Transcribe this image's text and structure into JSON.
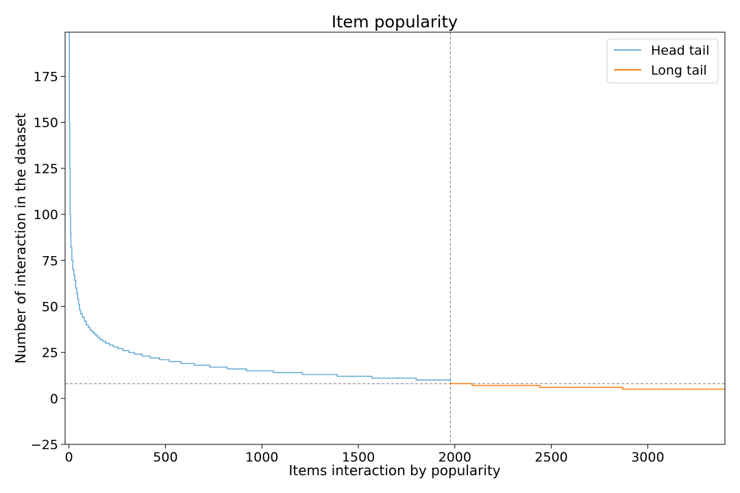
{
  "chart_data": {
    "type": "line",
    "title": "Item popularity",
    "xlabel": "Items interaction by popularity",
    "ylabel": "Number of interaction in the dataset",
    "xlim": [
      -20,
      3400
    ],
    "ylim": [
      -25,
      199
    ],
    "xticks": [
      0,
      500,
      1000,
      1500,
      2000,
      2500,
      3000
    ],
    "yticks": [
      -25,
      0,
      25,
      50,
      75,
      100,
      125,
      150,
      175
    ],
    "grid": false,
    "legend_position": "top-right",
    "reference_lines": {
      "vertical_x": 1977,
      "horizontal_y": 8
    },
    "series": [
      {
        "name": "Head tail",
        "color": "#6baed6",
        "x": [
          0,
          2,
          4,
          6,
          8,
          10,
          15,
          20,
          25,
          30,
          35,
          40,
          45,
          50,
          55,
          60,
          70,
          80,
          90,
          100,
          110,
          120,
          130,
          140,
          150,
          160,
          175,
          190,
          210,
          230,
          255,
          280,
          310,
          340,
          380,
          420,
          470,
          520,
          580,
          650,
          730,
          820,
          920,
          1060,
          1210,
          1390,
          1570,
          1800,
          1977
        ],
        "y": [
          199,
          150,
          125,
          100,
          90,
          82,
          75,
          70,
          67,
          64,
          60,
          57,
          54,
          51,
          48,
          46,
          44,
          42,
          40,
          38.5,
          37,
          36,
          35,
          34,
          33,
          32,
          31,
          30,
          29,
          28,
          27,
          26,
          25,
          24,
          23,
          22,
          21,
          20,
          19,
          18,
          17,
          16,
          15,
          14,
          13,
          12,
          11,
          10,
          9
        ]
      },
      {
        "name": "Long tail",
        "color": "#ff7f0e",
        "x": [
          1977,
          2090,
          2440,
          2870,
          3400
        ],
        "y": [
          8,
          7,
          6,
          5,
          5
        ]
      }
    ]
  }
}
